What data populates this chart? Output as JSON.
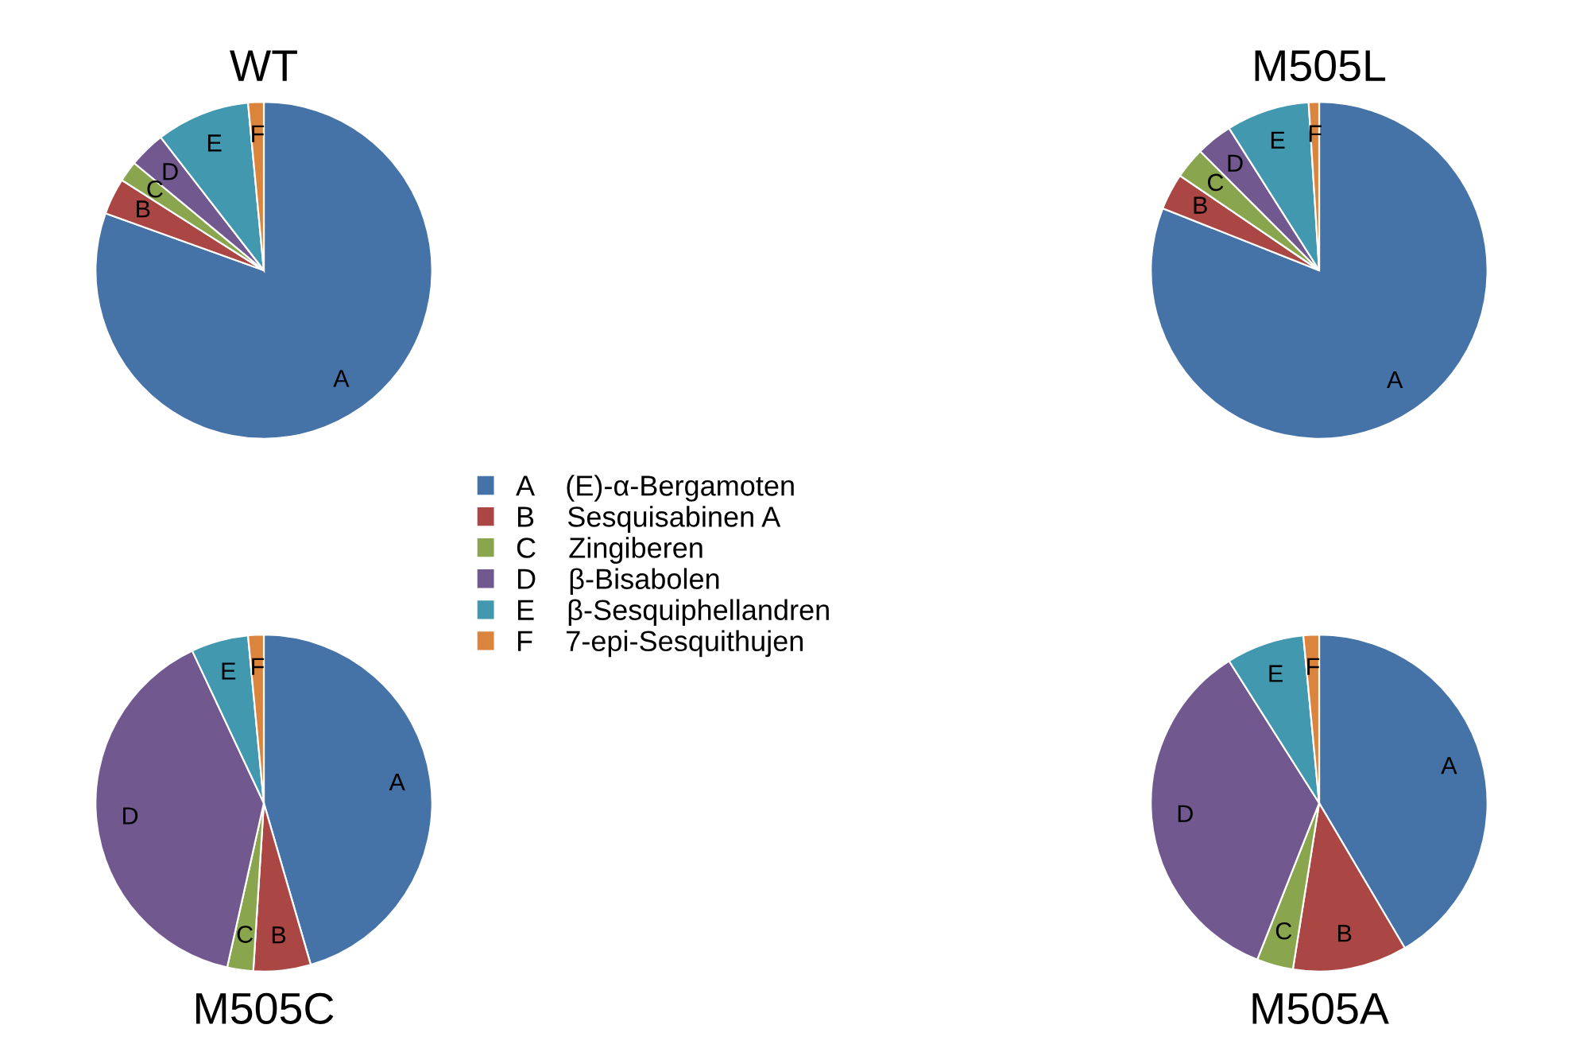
{
  "chart_data": [
    {
      "type": "pie",
      "title": "WT",
      "categories": [
        "(E)-α-Bergamoten",
        "Sesquisabinen A",
        "Zingiberen",
        "β-Bisabolen",
        "β-Sesquiphellandren",
        "7-epi-Sesquithujen"
      ],
      "values": [
        80.5,
        3.5,
        2,
        3.5,
        9,
        1.5
      ],
      "value_labels": [
        "A",
        "B",
        "C",
        "D",
        "E",
        "F"
      ],
      "colors": [
        "#4572a7",
        "#aa4643",
        "#89a54e",
        "#71588f",
        "#4198af",
        "#db843d"
      ],
      "legend": "bottom right"
    },
    {
      "type": "pie",
      "title": "M505L",
      "categories": [
        "A",
        "B",
        "C",
        "D",
        "E",
        "F"
      ],
      "values": [
        81,
        3.5,
        3,
        3.5,
        8,
        1
      ],
      "colors": [
        "#4572a7",
        "#aa4643",
        "#89a54e",
        "#71588f",
        "#4198af",
        "#db843d"
      ]
    },
    {
      "type": "pie",
      "title": "M505C",
      "categories": [
        "A",
        "B",
        "C",
        "D",
        "E",
        "F"
      ],
      "values": [
        45.5,
        5.5,
        2.5,
        39.5,
        5.5,
        1.5
      ],
      "colors": [
        "#4572a7",
        "#aa4643",
        "#89a54e",
        "#71588f",
        "#4198af",
        "#db843d"
      ]
    },
    {
      "type": "pie",
      "title": "M505A",
      "categories": [
        "A",
        "B",
        "C",
        "D",
        "E",
        "F"
      ],
      "values": [
        41.5,
        11,
        3.5,
        35,
        7.5,
        1.5
      ],
      "colors": [
        "#4572a7",
        "#aa4643",
        "#89a54e",
        "#71588f",
        "#4198af",
        "#db843d"
      ]
    }
  ]
}
